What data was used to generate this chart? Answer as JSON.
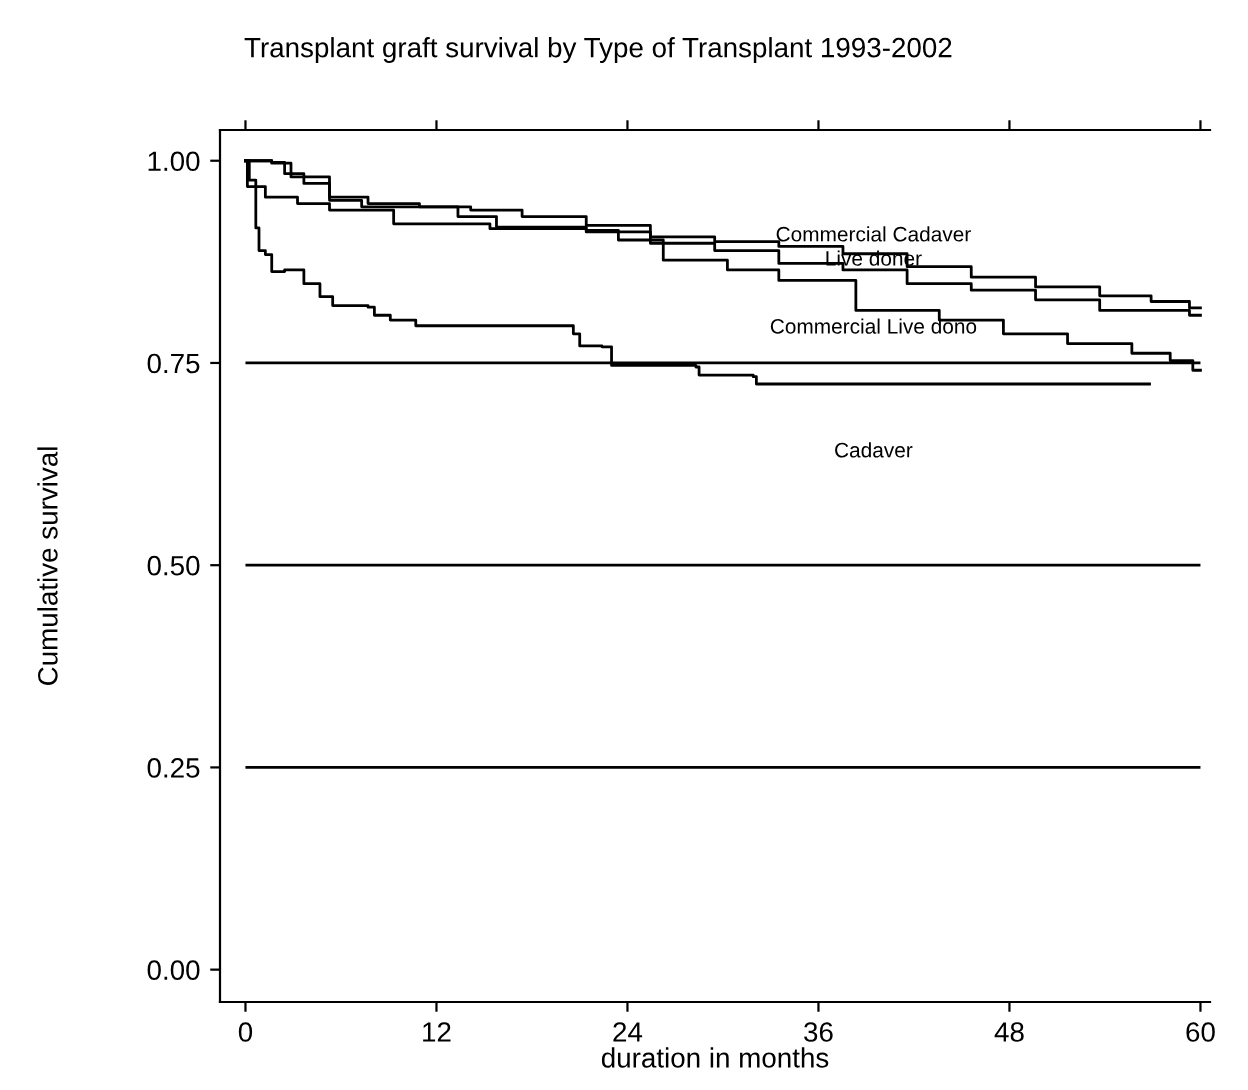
{
  "chart_data": {
    "type": "step",
    "title": "Transplant graft survival by Type of Transplant 1993-2002",
    "xlabel": "duration in months",
    "ylabel": "Cumulative survival",
    "xlim": [
      -1.6,
      60.6
    ],
    "ylim": [
      -0.04,
      1.038
    ],
    "xticks": [
      0,
      12,
      24,
      36,
      48,
      60
    ],
    "yticks": [
      {
        "value": 0,
        "label": "0.00"
      },
      {
        "value": 0.25,
        "label": "0.25"
      },
      {
        "value": 0.5,
        "label": "0.50"
      },
      {
        "value": 0.75,
        "label": "0.75"
      },
      {
        "value": 1,
        "label": "1.00"
      }
    ],
    "grid": false,
    "legend": false,
    "series": [
      {
        "name": "Commercial Cadaver",
        "color": "#000000",
        "x": [
          0,
          1.65,
          2.46,
          3.67,
          5.28,
          7.7,
          10.93,
          14.15,
          17.38,
          21.41,
          25.44,
          29.48,
          33.51,
          37.54,
          41.57,
          45.6,
          49.64,
          53.67,
          56.9,
          59.31,
          60
        ],
        "values": [
          1.0,
          0.998,
          0.984,
          0.972,
          0.955,
          0.947,
          0.943,
          0.939,
          0.931,
          0.92,
          0.906,
          0.9,
          0.894,
          0.885,
          0.869,
          0.856,
          0.844,
          0.833,
          0.826,
          0.818,
          0.818
        ]
      },
      {
        "name": "Live doner",
        "color": "#000000",
        "x": [
          0,
          0.12,
          1.25,
          3.27,
          5.28,
          9.31,
          15.36,
          21.41,
          25.44,
          29.48,
          33.51,
          37.54,
          41.57,
          45.6,
          49.64,
          53.67,
          59.31,
          60
        ],
        "values": [
          1.0,
          0.968,
          0.955,
          0.947,
          0.939,
          0.922,
          0.916,
          0.912,
          0.898,
          0.889,
          0.873,
          0.865,
          0.848,
          0.84,
          0.828,
          0.815,
          0.809,
          0.809
        ]
      },
      {
        "name": "Commercial Live dono",
        "color": "#000000",
        "x": [
          0,
          1.65,
          2.86,
          5.28,
          7.3,
          13.35,
          15.77,
          21.41,
          23.43,
          26.25,
          30.28,
          33.51,
          38.35,
          43.59,
          47.62,
          51.65,
          55.69,
          58.1,
          59.52,
          60
        ],
        "values": [
          1.0,
          0.997,
          0.98,
          0.951,
          0.943,
          0.931,
          0.918,
          0.914,
          0.902,
          0.877,
          0.865,
          0.852,
          0.815,
          0.803,
          0.786,
          0.774,
          0.762,
          0.753,
          0.741,
          0.741
        ]
      },
      {
        "name": "Cadaver",
        "color": "#000000",
        "x": [
          0,
          0.24,
          0.65,
          0.85,
          1.25,
          1.65,
          2.46,
          3.67,
          4.68,
          5.48,
          7.7,
          8.1,
          9.1,
          10.7,
          20.2,
          20.6,
          21.0,
          22.4,
          23.0,
          28.3,
          28.5,
          31.9,
          32.1,
          56.8
        ],
        "values": [
          1.0,
          0.976,
          0.917,
          0.889,
          0.884,
          0.863,
          0.865,
          0.848,
          0.832,
          0.821,
          0.819,
          0.809,
          0.803,
          0.796,
          0.796,
          0.786,
          0.771,
          0.77,
          0.747,
          0.745,
          0.735,
          0.733,
          0.724,
          0.724
        ]
      }
    ],
    "ref_lines": [
      {
        "axis": "y",
        "value": 0.25,
        "color": "#000000"
      },
      {
        "axis": "y",
        "value": 0.5,
        "color": "#000000"
      },
      {
        "axis": "y",
        "value": 0.75,
        "color": "#000000"
      }
    ]
  }
}
